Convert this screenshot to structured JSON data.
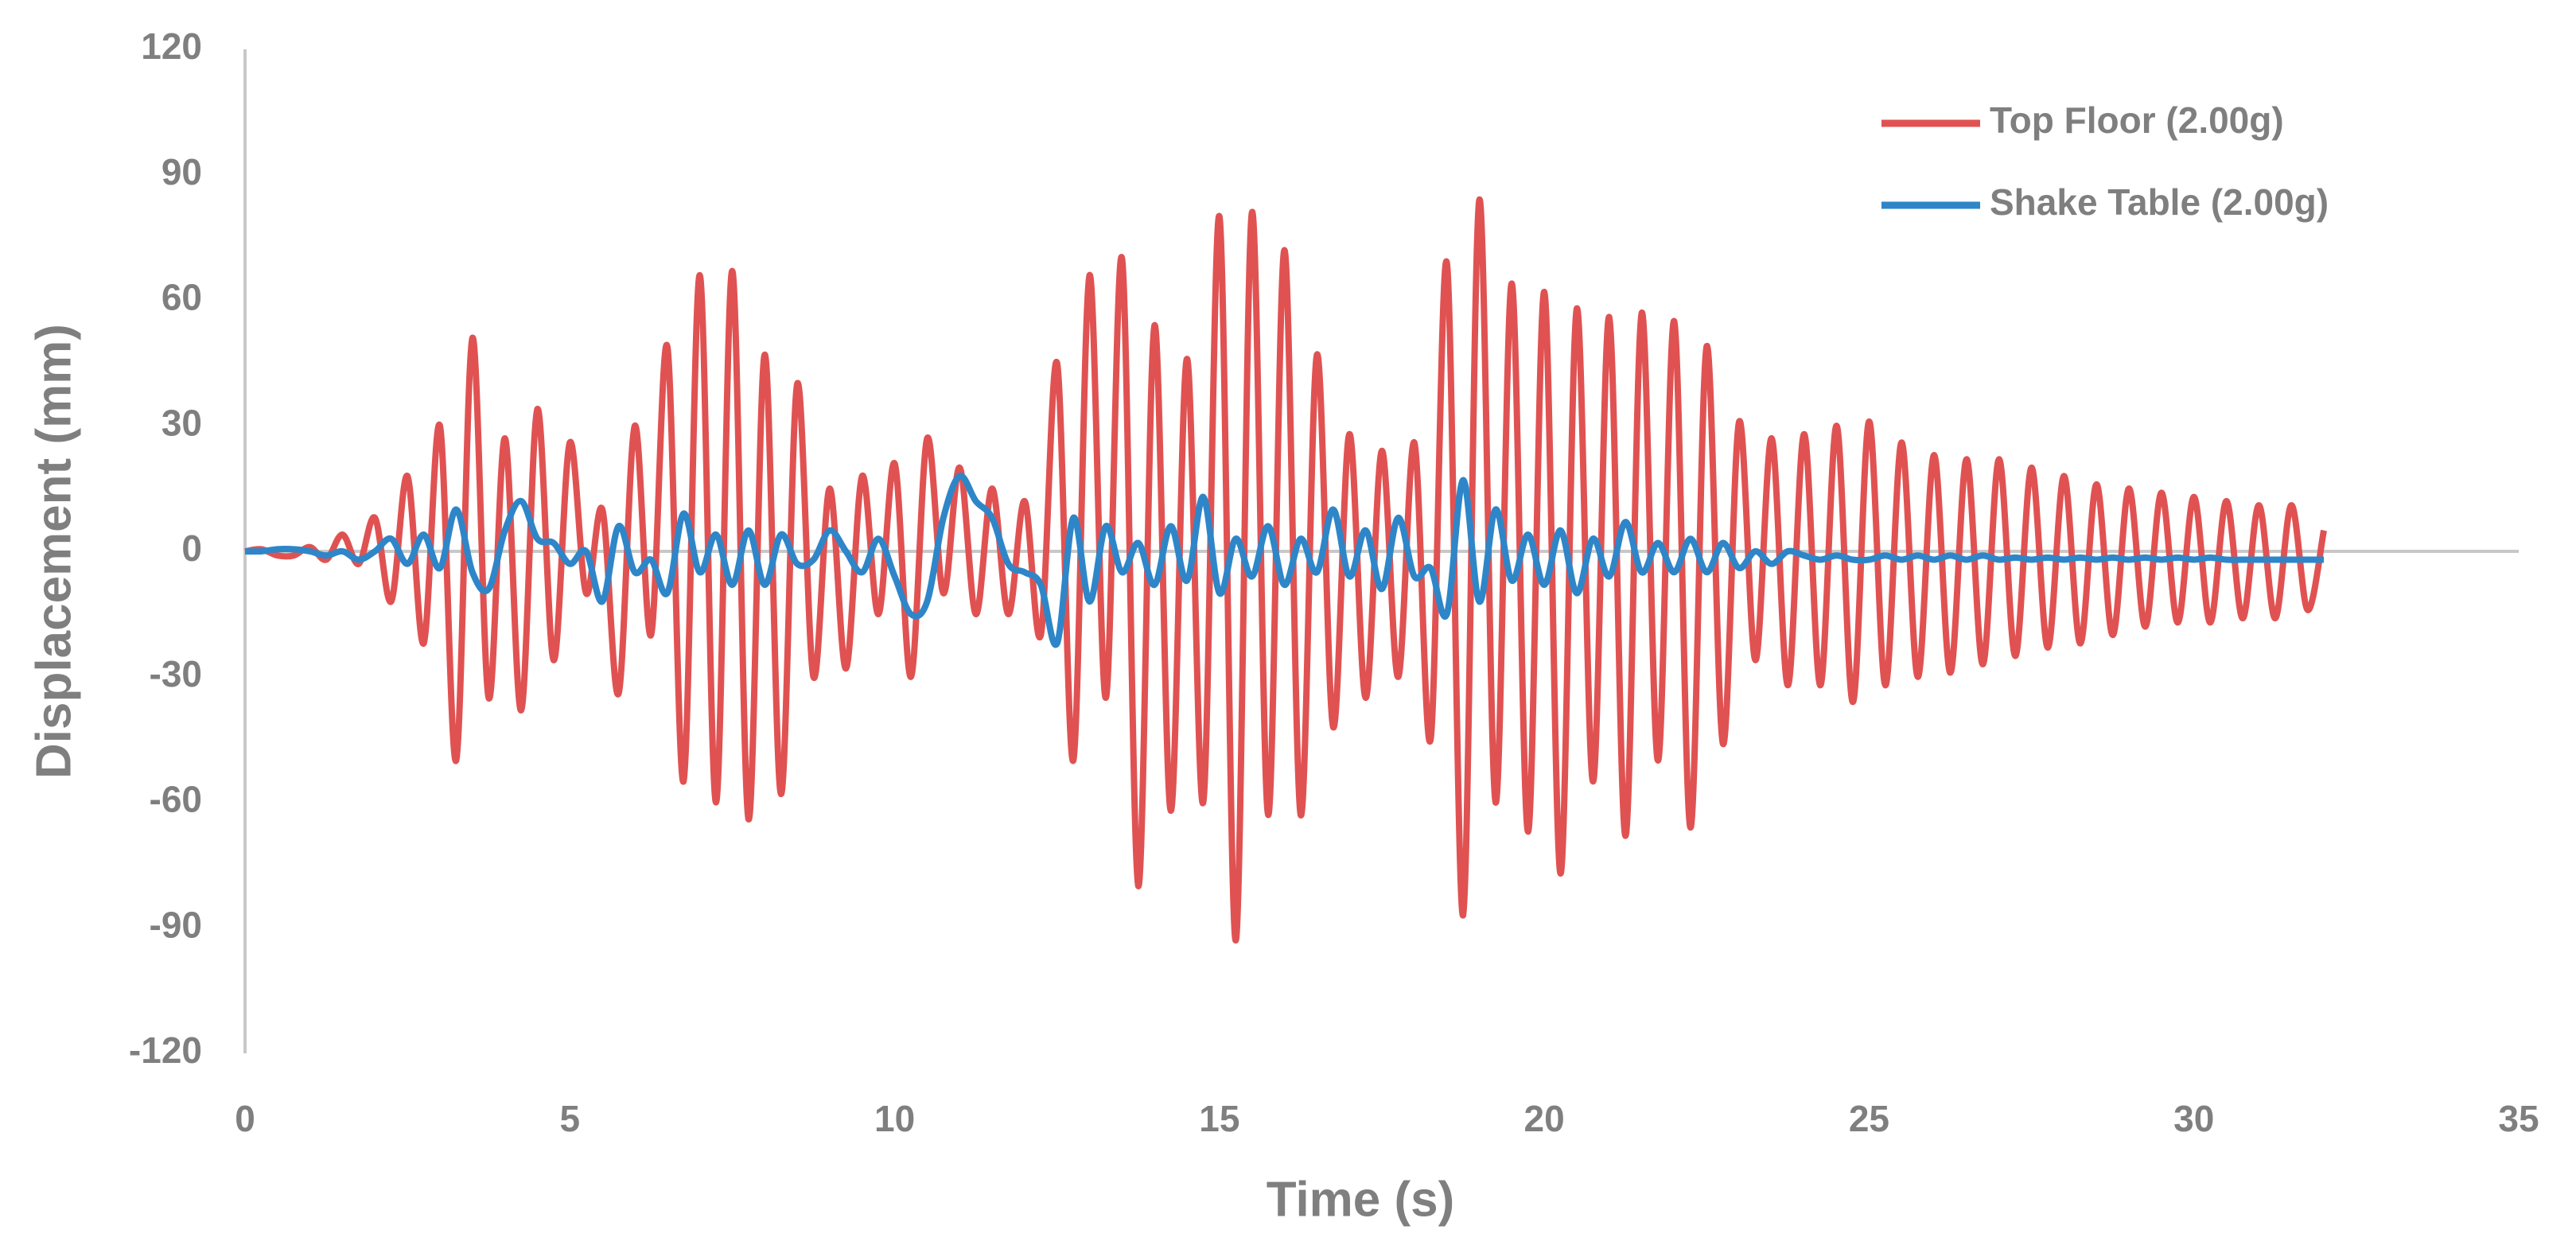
{
  "chart_data": {
    "type": "line",
    "x_label": "Time (s)",
    "y_label": "Displacement (mm)",
    "xlim": [
      0,
      35
    ],
    "xticks": [
      0,
      5,
      10,
      15,
      20,
      25,
      30,
      35
    ],
    "ylim": [
      -120,
      120
    ],
    "yticks": [
      -120,
      -90,
      -60,
      -30,
      0,
      30,
      60,
      90,
      120
    ],
    "legend": "top-right",
    "x": [
      0,
      0.25,
      0.5,
      0.75,
      1,
      1.25,
      1.5,
      1.75,
      2,
      2.25,
      2.5,
      2.75,
      3,
      3.25,
      3.5,
      3.75,
      4,
      4.25,
      4.5,
      4.75,
      5,
      5.25,
      5.5,
      5.75,
      6,
      6.25,
      6.5,
      6.75,
      7,
      7.25,
      7.5,
      7.75,
      8,
      8.25,
      8.5,
      8.75,
      9,
      9.25,
      9.5,
      9.75,
      10,
      10.25,
      10.5,
      10.75,
      11,
      11.25,
      11.5,
      11.75,
      12,
      12.25,
      12.5,
      12.75,
      13,
      13.25,
      13.5,
      13.75,
      14,
      14.25,
      14.5,
      14.75,
      15,
      15.25,
      15.5,
      15.75,
      16,
      16.25,
      16.5,
      16.75,
      17,
      17.25,
      17.5,
      17.75,
      18,
      18.25,
      18.5,
      18.75,
      19,
      19.25,
      19.5,
      19.75,
      20,
      20.25,
      20.5,
      20.75,
      21,
      21.25,
      21.5,
      21.75,
      22,
      22.25,
      22.5,
      22.75,
      23,
      23.25,
      23.5,
      23.75,
      24,
      24.25,
      24.5,
      24.75,
      25,
      25.25,
      25.5,
      25.75,
      26,
      26.25,
      26.5,
      26.75,
      27,
      27.25,
      27.5,
      27.75,
      28,
      28.25,
      28.5,
      28.75,
      29,
      29.25,
      29.5,
      29.75,
      30,
      30.25,
      30.5,
      30.75,
      31,
      31.25,
      31.5,
      31.75,
      32
    ],
    "series": [
      {
        "name": "Top Floor (2.00g)",
        "color": "#e05252",
        "values": [
          0,
          0.5,
          -1,
          -1,
          1,
          -2,
          4,
          -3,
          8,
          -12,
          18,
          -22,
          30,
          -50,
          51,
          -35,
          27,
          -38,
          34,
          -26,
          26,
          -10,
          10,
          -34,
          30,
          -20,
          49,
          -55,
          66,
          -60,
          67,
          -64,
          47,
          -58,
          40,
          -30,
          15,
          -28,
          18,
          -15,
          21,
          -30,
          27,
          -10,
          20,
          -15,
          15,
          -15,
          12,
          -20,
          45,
          -50,
          66,
          -35,
          70,
          -80,
          54,
          -62,
          46,
          -60,
          80,
          -93,
          81,
          -63,
          72,
          -63,
          47,
          -42,
          28,
          -35,
          24,
          -30,
          26,
          -45,
          69,
          -87,
          84,
          -60,
          64,
          -67,
          62,
          -77,
          58,
          -55,
          56,
          -68,
          57,
          -50,
          55,
          -66,
          49,
          -46,
          31,
          -26,
          27,
          -32,
          28,
          -32,
          30,
          -36,
          31,
          -32,
          26,
          -30,
          23,
          -29,
          22,
          -27,
          22,
          -25,
          20,
          -23,
          18,
          -22,
          16,
          -20,
          15,
          -18,
          14,
          -17,
          13,
          -17,
          12,
          -16,
          11,
          -16,
          11,
          -14,
          5
        ]
      },
      {
        "name": "Shake Table (2.00g)",
        "color": "#2e86c8",
        "values": [
          0,
          0,
          0.5,
          0.5,
          0,
          -1,
          0,
          -2,
          0,
          3,
          -3,
          4,
          -4,
          10,
          -5,
          -9,
          5,
          12,
          3,
          2,
          -3,
          0,
          -12,
          6,
          -5,
          -2,
          -10,
          9,
          -5,
          4,
          -8,
          5,
          -8,
          4,
          -3,
          -2,
          5,
          0,
          -5,
          3,
          -6,
          -15,
          -12,
          8,
          18,
          12,
          8,
          -3,
          -5,
          -8,
          -22,
          8,
          -12,
          6,
          -5,
          2,
          -8,
          6,
          -7,
          13,
          -10,
          3,
          -6,
          6,
          -8,
          3,
          -5,
          10,
          -6,
          5,
          -9,
          8,
          -6,
          -4,
          -15,
          17,
          -12,
          10,
          -7,
          4,
          -8,
          5,
          -10,
          3,
          -6,
          7,
          -5,
          2,
          -5,
          3,
          -5,
          2,
          -4,
          0,
          -3,
          0,
          -1,
          -2,
          -1,
          -2,
          -2,
          -1,
          -2,
          -1,
          -2,
          -1,
          -2,
          -1,
          -2,
          -1.5,
          -2,
          -1.5,
          -2,
          -1.5,
          -2,
          -1.5,
          -2,
          -1.5,
          -2,
          -1.5,
          -2,
          -1.5,
          -2,
          -2,
          -2,
          -2,
          -2,
          -2,
          -2
        ]
      }
    ]
  }
}
